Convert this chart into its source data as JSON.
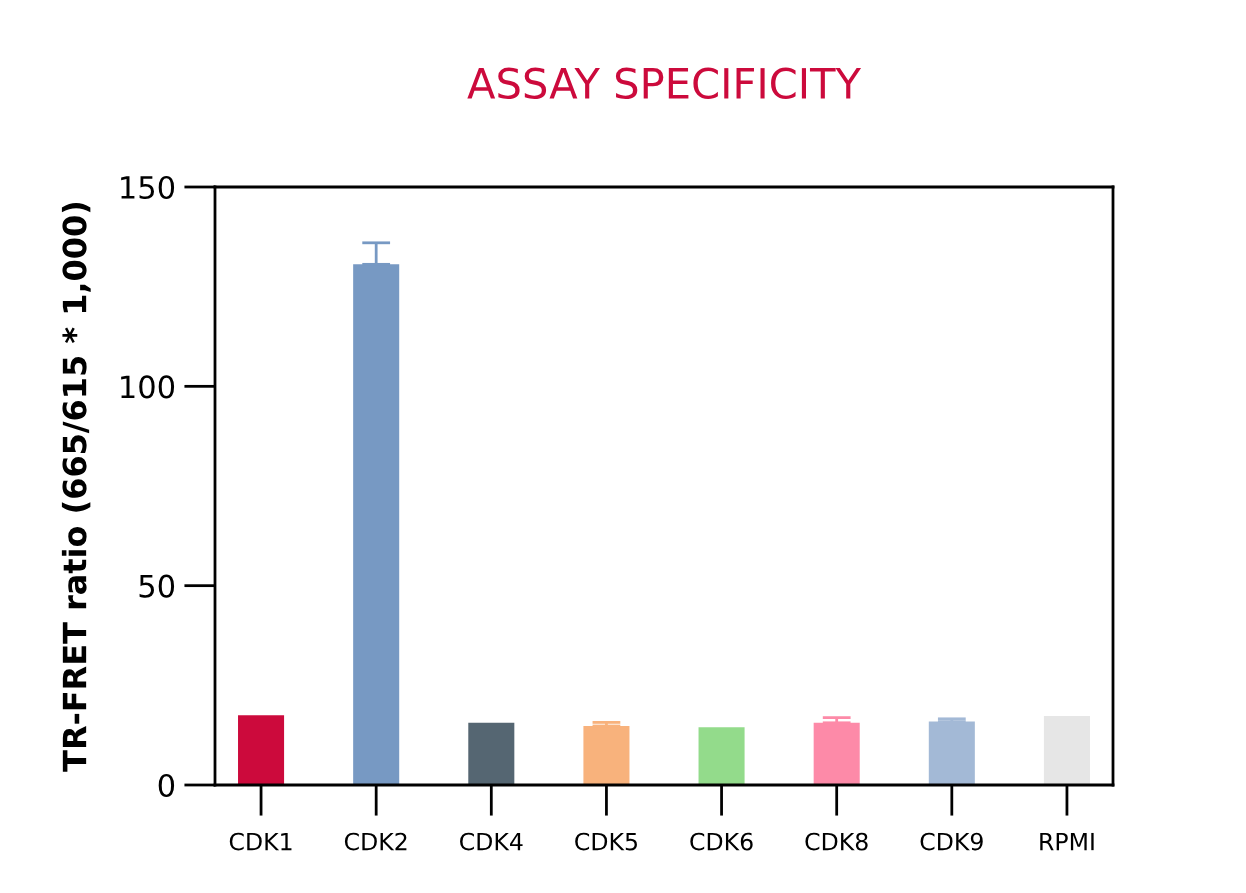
{
  "chart_data": {
    "type": "bar",
    "title": "ASSAY SPECIFICITY",
    "ylabel": "TR-FRET ratio (665/615 * 1,000)",
    "categories": [
      "CDK1",
      "CDK2",
      "CDK4",
      "CDK5",
      "CDK6",
      "CDK8",
      "CDK9",
      "RPMI"
    ],
    "values": [
      17.5,
      130.6,
      15.6,
      14.8,
      14.5,
      15.6,
      15.9,
      17.3
    ],
    "errors": [
      null,
      [
        130.6,
        136.0
      ],
      null,
      [
        14.8,
        15.7
      ],
      null,
      [
        15.6,
        16.9
      ],
      [
        15.9,
        16.6
      ],
      null
    ],
    "colors": [
      "#cc0a3c",
      "#7799c3",
      "#556672",
      "#f8b27c",
      "#93db8b",
      "#fd8aa8",
      "#a3b9d6",
      "#e6e6e6"
    ],
    "ylim": [
      0,
      150
    ],
    "yticks": [
      0,
      50,
      100,
      150
    ],
    "grid": false,
    "legend": false
  }
}
